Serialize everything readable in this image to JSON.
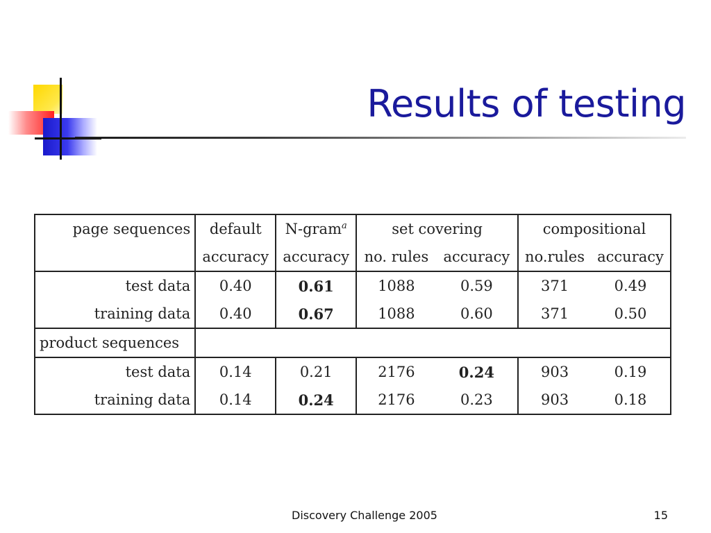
{
  "slide": {
    "title": "Results of testing",
    "footer_text": "Discovery Challenge  2005",
    "page_number": "15",
    "title_color": "#1a1a9c"
  },
  "table": {
    "header_row1": {
      "label": "page sequences",
      "default": "default",
      "ngram": "N-gram",
      "ngram_sup": "a",
      "set_covering": "set covering",
      "compositional": "compositional"
    },
    "header_row2": {
      "default_accuracy": "accuracy",
      "ngram_accuracy": "accuracy",
      "sc_rules": "no. rules",
      "sc_accuracy": "accuracy",
      "comp_rules": "no.rules",
      "comp_accuracy": "accuracy"
    },
    "page_rows": [
      {
        "label": "test data",
        "default": "0.40",
        "ngram": "0.61",
        "sc_rules": "1088",
        "sc_acc": "0.59",
        "comp_rules": "371",
        "comp_acc": "0.49"
      },
      {
        "label": "training data",
        "default": "0.40",
        "ngram": "0.67",
        "sc_rules": "1088",
        "sc_acc": "0.60",
        "comp_rules": "371",
        "comp_acc": "0.50"
      }
    ],
    "product_section_label": "product sequences",
    "product_rows": [
      {
        "label": "test data",
        "default": "0.14",
        "ngram": "0.21",
        "sc_rules": "2176",
        "sc_acc": "0.24",
        "comp_rules": "903",
        "comp_acc": "0.19"
      },
      {
        "label": "training data",
        "default": "0.14",
        "ngram": "0.24",
        "sc_rules": "2176",
        "sc_acc": "0.23",
        "comp_rules": "903",
        "comp_acc": "0.18"
      }
    ]
  }
}
